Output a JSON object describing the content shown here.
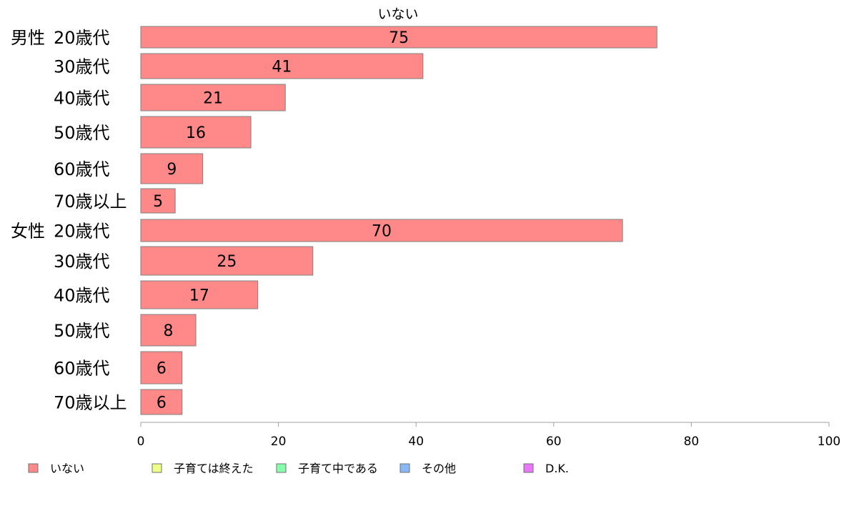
{
  "chart_data": {
    "type": "bar",
    "orientation": "horizontal",
    "title": "いない",
    "categories": [
      {
        "group": "男性",
        "label": "20歳代"
      },
      {
        "group": "",
        "label": "30歳代"
      },
      {
        "group": "",
        "label": "40歳代"
      },
      {
        "group": "",
        "label": "50歳代"
      },
      {
        "group": "",
        "label": "60歳代"
      },
      {
        "group": "",
        "label": "70歳以上"
      },
      {
        "group": "女性",
        "label": "20歳代"
      },
      {
        "group": "",
        "label": "30歳代"
      },
      {
        "group": "",
        "label": "40歳代"
      },
      {
        "group": "",
        "label": "50歳代"
      },
      {
        "group": "",
        "label": "60歳代"
      },
      {
        "group": "",
        "label": "70歳以上"
      }
    ],
    "series": [
      {
        "name": "いない",
        "color": "#ff8888",
        "values": [
          75,
          41,
          21,
          16,
          9,
          5,
          70,
          25,
          17,
          8,
          6,
          6
        ]
      }
    ],
    "xlim": [
      0,
      100
    ],
    "xticks": [
      0,
      20,
      40,
      60,
      80,
      100
    ],
    "xlabel": "",
    "ylabel": "",
    "grid": false,
    "legend": {
      "placement": "bottom",
      "entries": [
        {
          "label": "いない",
          "color": "#ff8888"
        },
        {
          "label": "子育ては終えた",
          "color": "#f0ff88"
        },
        {
          "label": "子育て中である",
          "color": "#88ffaa"
        },
        {
          "label": "その他",
          "color": "#88b8f8"
        },
        {
          "label": "D.K.",
          "color": "#e878f8"
        }
      ]
    }
  }
}
